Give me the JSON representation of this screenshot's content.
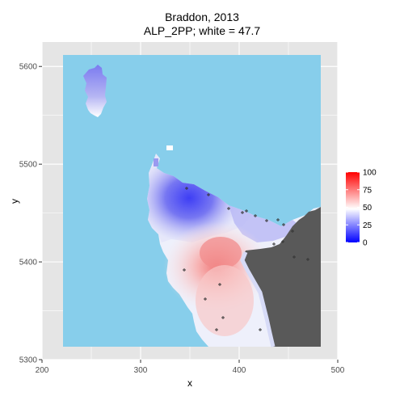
{
  "title": "Braddon, 2013",
  "subtitle": "ALP_2PP; white = 47.7",
  "chart_data": {
    "type": "heatmap",
    "xlabel": "x",
    "ylabel": "y",
    "xlim": [
      200,
      500
    ],
    "ylim": [
      5300,
      5625
    ],
    "x_ticks": [
      200,
      300,
      400,
      500
    ],
    "y_ticks": [
      5300,
      5400,
      5500,
      5600
    ],
    "legend": {
      "placement": "right",
      "range": [
        0,
        100
      ],
      "midpoint": 47.7,
      "ticks": [
        0,
        25,
        50,
        75,
        100
      ],
      "colors": {
        "low": "#0000ff",
        "mid": "#ffffff",
        "high": "#ff0000"
      }
    },
    "colors": {
      "panel": "#e5e5e5",
      "grid": "#ffffff",
      "sea": "#87ceeb",
      "outside": "#595959",
      "point": "#333333"
    }
  }
}
